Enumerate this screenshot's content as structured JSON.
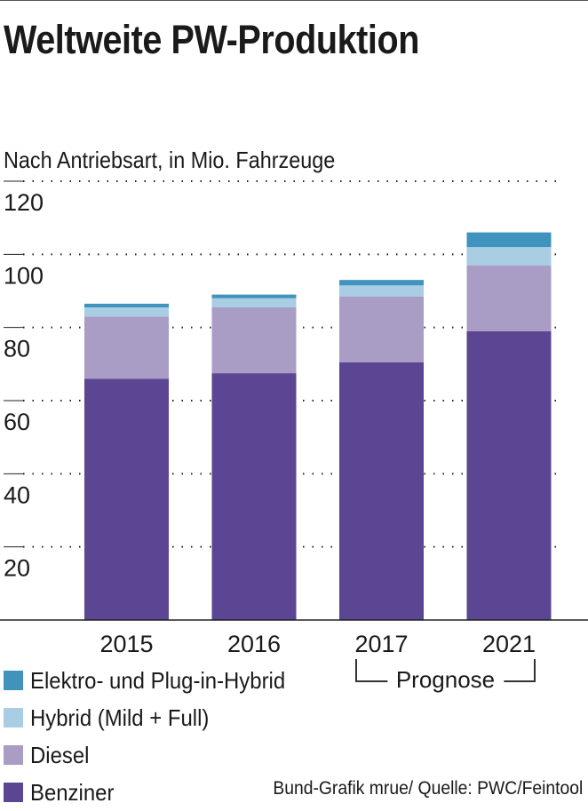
{
  "header": {
    "title": "Weltweite PW-Produktion",
    "subtitle": "Nach Antriebsart, in Mio. Fahrzeuge"
  },
  "legend": {
    "items": [
      {
        "label": "Elektro- und Plug-in-Hybrid",
        "color": "#3f93bd"
      },
      {
        "label": "Hybrid (Mild + Full)",
        "color": "#a9cde2"
      },
      {
        "label": "Diesel",
        "color": "#a99dc6"
      },
      {
        "label": "Benziner",
        "color": "#5c4592"
      }
    ]
  },
  "annotation": {
    "prognose": "Prognose"
  },
  "source": "Bund-Grafik mrue/ Quelle: PWC/Feintool",
  "chart_data": {
    "type": "bar",
    "stacked": true,
    "title": "Weltweite PW-Produktion",
    "subtitle": "Nach Antriebsart, in Mio. Fahrzeuge",
    "xlabel": "",
    "ylabel": "",
    "ylim": [
      0,
      120
    ],
    "yticks": [
      20,
      40,
      60,
      80,
      100,
      120
    ],
    "grid": true,
    "legend_position": "bottom-left",
    "categories": [
      "2015",
      "2016",
      "2017",
      "2021"
    ],
    "series": [
      {
        "name": "Benziner",
        "color": "#5c4592",
        "values": [
          66,
          67.5,
          70.5,
          79
        ]
      },
      {
        "name": "Diesel",
        "color": "#a99dc6",
        "values": [
          17,
          18,
          18,
          18
        ]
      },
      {
        "name": "Hybrid (Mild + Full)",
        "color": "#a9cde2",
        "values": [
          2.5,
          2.5,
          3,
          5
        ]
      },
      {
        "name": "Elektro- und Plug-in-Hybrid",
        "color": "#3f93bd",
        "values": [
          1,
          1,
          1.5,
          4
        ]
      }
    ],
    "annotations": [
      "Prognose"
    ]
  }
}
